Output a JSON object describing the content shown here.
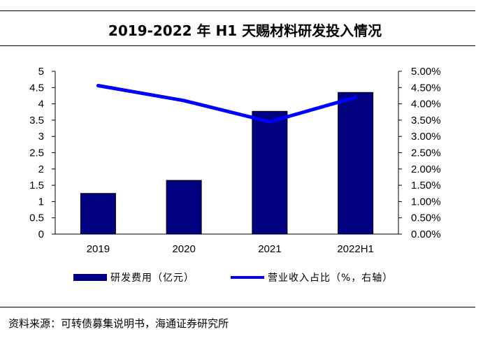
{
  "title": "2019-2022 年 H1 天赐材料研发投入情况",
  "source": "资料来源：可转债募集说明书，海通证券研究所",
  "colors": {
    "bar": "#000080",
    "line": "#0000FF"
  },
  "chart_data": {
    "type": "bar+line",
    "categories": [
      "2019",
      "2020",
      "2021",
      "2022H1"
    ],
    "series": [
      {
        "name": "研发费用（亿元）",
        "type": "bar",
        "axis": "left",
        "values": [
          1.25,
          1.65,
          3.77,
          4.35
        ]
      },
      {
        "name": "营业收入占比（%，右轴）",
        "type": "line",
        "axis": "right",
        "values": [
          4.56,
          4.1,
          3.45,
          4.2
        ]
      }
    ],
    "y_left": {
      "min": 0,
      "max": 5,
      "ticks": [
        "0",
        "0.5",
        "1",
        "1.5",
        "2",
        "2.5",
        "3",
        "3.5",
        "4",
        "4.5",
        "5"
      ]
    },
    "y_right": {
      "min": 0,
      "max": 5,
      "ticks": [
        "0.00%",
        "0.50%",
        "1.00%",
        "1.50%",
        "2.00%",
        "2.50%",
        "3.00%",
        "3.50%",
        "4.00%",
        "4.50%",
        "5.00%"
      ]
    },
    "grid": false,
    "legend_position": "bottom"
  }
}
